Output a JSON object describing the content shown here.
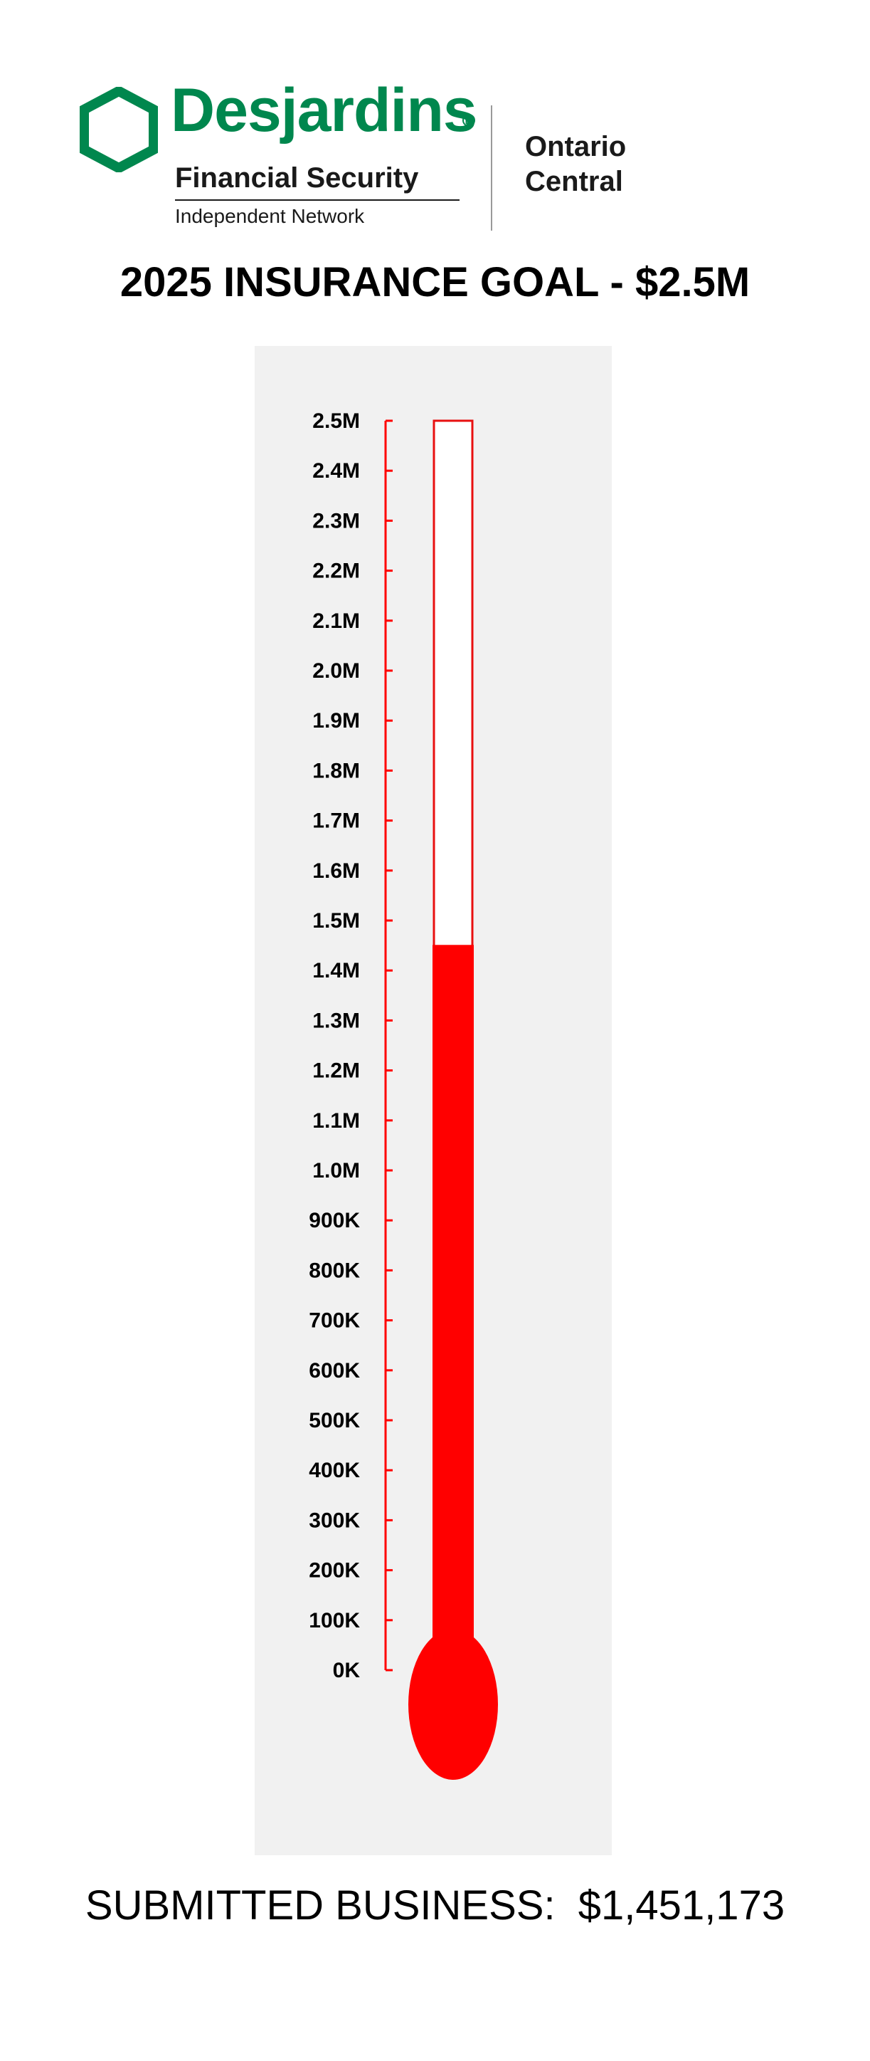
{
  "brand": {
    "name": "Desjardins",
    "registered": "R",
    "subtitle": "Financial Security",
    "network": "Independent Network",
    "region_line1": "Ontario",
    "region_line2": "Central",
    "color": "#00874e"
  },
  "goal_title": "2025 INSURANCE GOAL - $2.5M",
  "submitted": {
    "label": "SUBMITTED BUSINESS:",
    "amount": "$1,451,173"
  },
  "colors": {
    "fill": "#ff0000",
    "scale": "#ff0000",
    "panel": "#f1f1f1",
    "tube_border": "#e81010"
  },
  "chart_data": {
    "type": "thermometer",
    "title": "2025 INSURANCE GOAL - $2.5M",
    "value": 1451173,
    "ylim": [
      0,
      2500000
    ],
    "ticks": [
      0,
      100000,
      200000,
      300000,
      400000,
      500000,
      600000,
      700000,
      800000,
      900000,
      1000000,
      1100000,
      1200000,
      1300000,
      1400000,
      1500000,
      1600000,
      1700000,
      1800000,
      1900000,
      2000000,
      2100000,
      2200000,
      2300000,
      2400000,
      2500000
    ],
    "tick_labels": [
      "0K",
      "100K",
      "200K",
      "300K",
      "400K",
      "500K",
      "600K",
      "700K",
      "800K",
      "900K",
      "1.0M",
      "1.1M",
      "1.2M",
      "1.3M",
      "1.4M",
      "1.5M",
      "1.6M",
      "1.7M",
      "1.8M",
      "1.9M",
      "2.0M",
      "2.1M",
      "2.2M",
      "2.3M",
      "2.4M",
      "2.5M"
    ],
    "grid": false
  }
}
